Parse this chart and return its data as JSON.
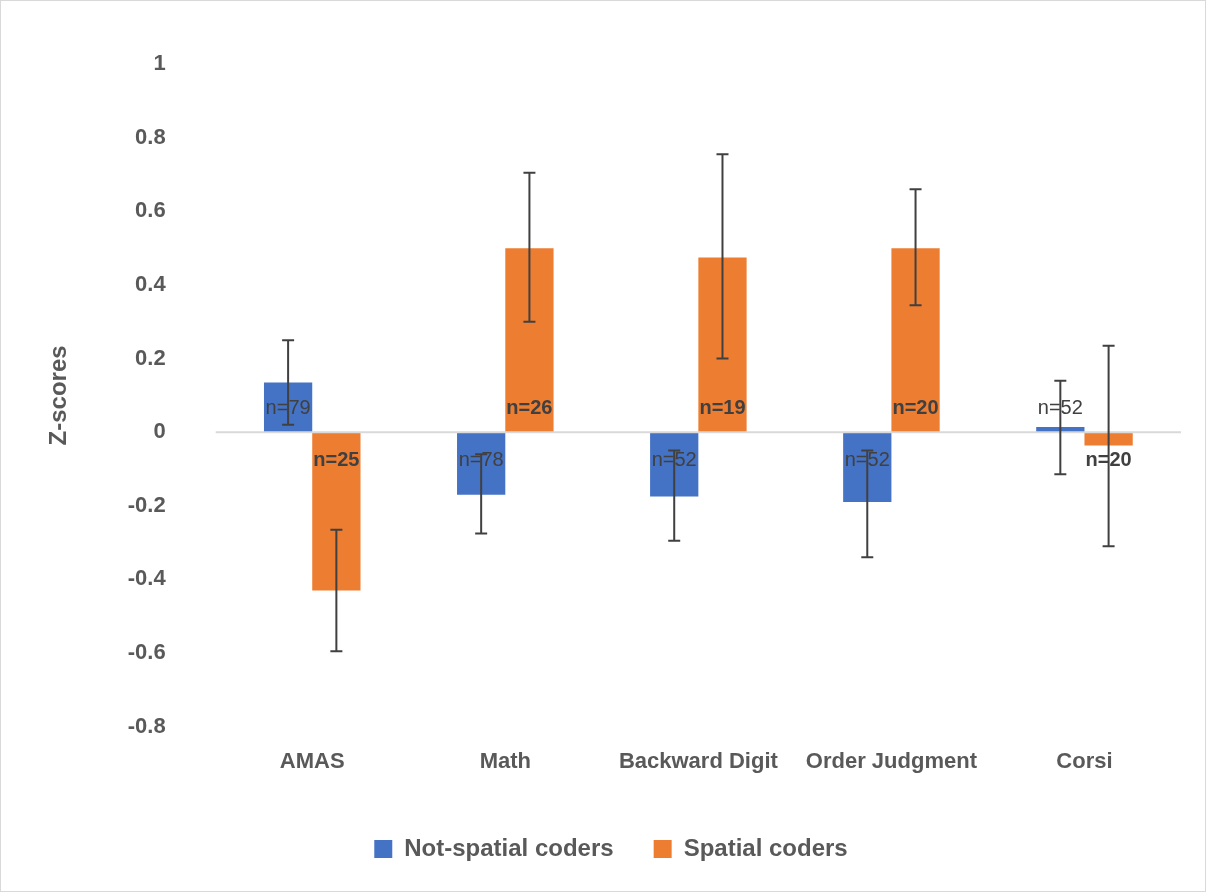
{
  "chart_data": {
    "type": "bar",
    "ylabel": "Z-scores",
    "categories": [
      "AMAS",
      "Math",
      "Backward Digit",
      "Order Judgment",
      "Corsi"
    ],
    "series": [
      {
        "name": "Not-spatial coders",
        "color": "#4472c4",
        "values": [
          0.135,
          -0.17,
          -0.175,
          -0.19,
          0.014
        ],
        "errors": [
          [
            0.02,
            0.25
          ],
          [
            -0.275,
            -0.06
          ],
          [
            -0.295,
            -0.05
          ],
          [
            -0.34,
            -0.05
          ],
          [
            -0.114,
            0.14
          ]
        ]
      },
      {
        "name": "Spatial coders",
        "color": "#ed7d31",
        "values": [
          -0.43,
          0.5,
          0.475,
          0.5,
          -0.036
        ],
        "errors": [
          [
            -0.595,
            -0.265
          ],
          [
            0.3,
            0.705
          ],
          [
            0.2,
            0.755
          ],
          [
            0.345,
            0.66
          ],
          [
            -0.31,
            0.235
          ]
        ]
      }
    ],
    "annotations": [
      "n=79",
      "n=78",
      "n=52",
      "n=52",
      "n=52",
      "n=25",
      "n=26",
      "n=19",
      "n=20",
      "n=20"
    ],
    "ref_lines": [
      {
        "axis": "y",
        "value": 0,
        "color": "#d9d9d9"
      }
    ],
    "ylim": [
      -0.8,
      1
    ],
    "yticks": [
      -0.8,
      -0.6,
      -0.4,
      -0.2,
      0,
      0.2,
      0.4,
      0.6,
      0.8,
      1
    ],
    "grid": false,
    "legend": "bottom"
  }
}
